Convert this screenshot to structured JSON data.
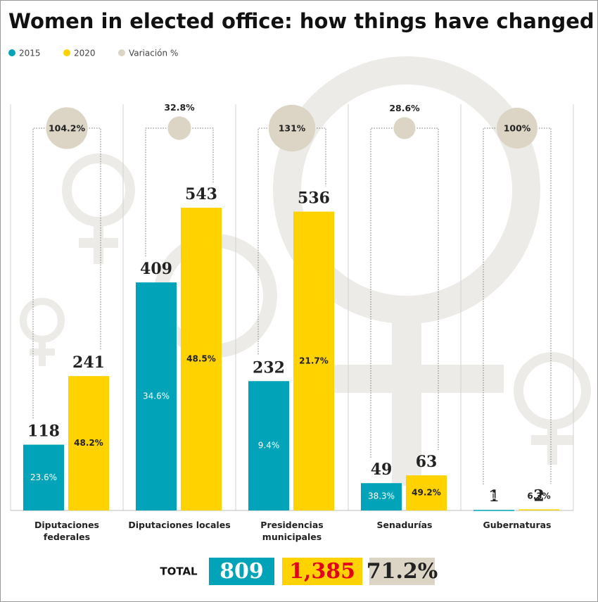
{
  "chart_data": {
    "type": "bar",
    "title": "Women in elected office: how things have changed",
    "categories": [
      "Diputaciones federales",
      "Diputaciones locales",
      "Presidencias municipales",
      "Senadurías",
      "Gubernaturas"
    ],
    "series": [
      {
        "name": "2015",
        "color": "#00a3b8",
        "values": [
          118,
          409,
          232,
          49,
          1
        ],
        "shares": [
          23.6,
          34.6,
          9.4,
          38.3,
          3.1
        ],
        "share_labels": [
          "23.6%",
          "34.6%",
          "9.4%",
          "38.3%",
          "3.1%"
        ]
      },
      {
        "name": "2020",
        "color": "#ffd200",
        "values": [
          241,
          543,
          536,
          63,
          2
        ],
        "shares": [
          48.2,
          48.5,
          21.7,
          49.2,
          6.3
        ],
        "share_labels": [
          "48.2%",
          "48.5%",
          "21.7%",
          "49.2%",
          "6.3%"
        ]
      }
    ],
    "variation": {
      "name": "Variación %",
      "color": "#dcd5c6",
      "values": [
        104.2,
        32.8,
        131,
        28.6,
        100
      ],
      "value_labels": [
        "104.2%",
        "32.8%",
        "131%",
        "28.6%",
        "100%"
      ]
    },
    "totals": {
      "label": "TOTAL",
      "values": [
        809,
        1385,
        71.2
      ],
      "value_labels": [
        "809",
        "1,385",
        "71.2%"
      ],
      "text_colors": [
        "#ffffff",
        "#e3001b",
        "#222222"
      ]
    }
  }
}
